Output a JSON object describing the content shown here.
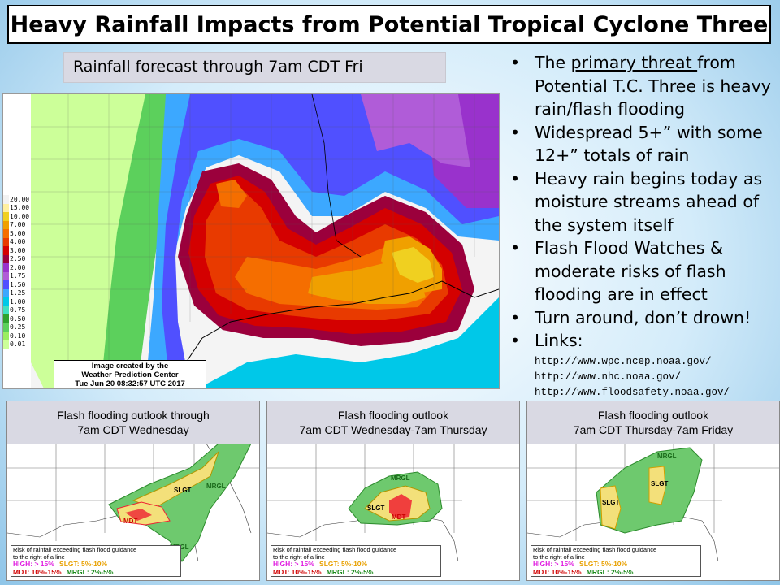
{
  "title": "Heavy Rainfall Impacts from Potential Tropical Cyclone Three",
  "subtitle": "Rainfall forecast through 7am CDT Fri",
  "map": {
    "legend": [
      {
        "value": "20.00",
        "color": "#f2f2f2"
      },
      {
        "value": "15.00",
        "color": "#fff0a0"
      },
      {
        "value": "10.00",
        "color": "#f0d020"
      },
      {
        "value": "7.00",
        "color": "#f0a000"
      },
      {
        "value": "5.00",
        "color": "#f56e00"
      },
      {
        "value": "4.00",
        "color": "#e83a00"
      },
      {
        "value": "3.00",
        "color": "#d40000"
      },
      {
        "value": "2.50",
        "color": "#9b003c"
      },
      {
        "value": "2.00",
        "color": "#9932cc"
      },
      {
        "value": "1.75",
        "color": "#b05cd8"
      },
      {
        "value": "1.50",
        "color": "#5050ff"
      },
      {
        "value": "1.25",
        "color": "#3ca8ff"
      },
      {
        "value": "1.00",
        "color": "#00c8e8"
      },
      {
        "value": "0.75",
        "color": "#40e0c0"
      },
      {
        "value": "0.50",
        "color": "#2ea22e"
      },
      {
        "value": "0.25",
        "color": "#5cd05c"
      },
      {
        "value": "0.10",
        "color": "#9aee60"
      },
      {
        "value": "0.01",
        "color": "#ccff99"
      }
    ],
    "credit_line1": "Image created by the",
    "credit_line2": "Weather Prediction Center",
    "credit_line3": "Tue Jun 20 08:32:57 UTC 2017"
  },
  "bullets": {
    "b1_pre": "The ",
    "b1_u": "primary threat ",
    "b1_post": "from Potential T.C. Three is heavy rain/flash flooding",
    "b2": "Widespread 5+” with some 12+” totals of rain",
    "b3": "Heavy rain begins today as moisture streams ahead of the system itself",
    "b4": "Flash Flood Watches & moderate risks of flash flooding are in effect",
    "b5": "Turn around, don’t drown!",
    "b6": "Links:",
    "links": [
      "http://www.wpc.ncep.noaa.gov/",
      "http://www.nhc.noaa.gov/",
      "http://www.floodsafety.noaa.gov/"
    ]
  },
  "panels": [
    {
      "title_line1": "Flash flooding outlook through",
      "title_line2": "7am CDT Wednesday",
      "labels": {
        "mdt": "MDT",
        "slgt": "SLGT",
        "mrgl": "MRGL",
        "mrgl2": "MRGL"
      },
      "legend_head1": "Risk of rainfall exceeding flash flood guidance",
      "legend_head2": "to the right of a line",
      "l_high": "HIGH: > 15%",
      "l_slgt": "SLGT: 5%-10%",
      "l_mdt": "MDT: 10%-15%",
      "l_mrgl": "MRGL: 2%-5%"
    },
    {
      "title_line1": "Flash flooding outlook",
      "title_line2": "7am CDT Wednesday-7am Thursday",
      "labels": {
        "mdt": "MDT",
        "slgt": "SLGT",
        "mrgl": "MRGL"
      },
      "legend_head1": "Risk of rainfall exceeding flash flood guidance",
      "legend_head2": "to the right of a line",
      "l_high": "HIGH: > 15%",
      "l_slgt": "SLGT: 5%-10%",
      "l_mdt": "MDT: 10%-15%",
      "l_mrgl": "MRGL: 2%-5%"
    },
    {
      "title_line1": "Flash flooding outlook",
      "title_line2": "7am CDT Thursday-7am Friday",
      "labels": {
        "slgt": "SLGT",
        "slgt2": "SLGT",
        "mrgl": "MRGL"
      },
      "legend_head1": "Risk of rainfall exceeding flash flood guidance",
      "legend_head2": "to the right of a line",
      "l_high": "HIGH: > 15%",
      "l_slgt": "SLGT: 5%-10%",
      "l_mdt": "MDT: 10%-15%",
      "l_mrgl": "MRGL: 2%-5%"
    }
  ]
}
